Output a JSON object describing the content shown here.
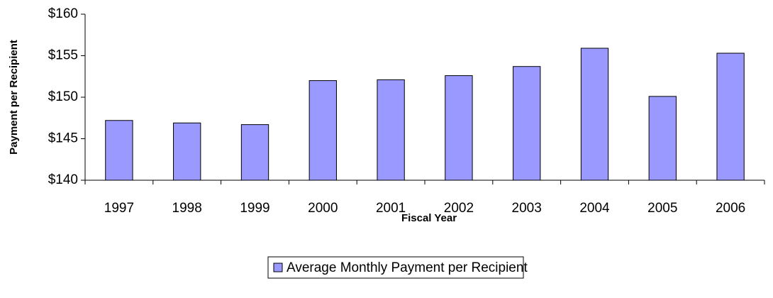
{
  "chart_data": {
    "type": "bar",
    "categories": [
      "1997",
      "1998",
      "1999",
      "2000",
      "2001",
      "2002",
      "2003",
      "2004",
      "2005",
      "2006"
    ],
    "series": [
      {
        "name": "Average Monthly Payment per Recipient",
        "color": "#9999ff",
        "values": [
          147.2,
          146.9,
          146.7,
          152.0,
          152.1,
          152.6,
          153.7,
          155.9,
          150.1,
          155.3
        ]
      }
    ],
    "xlabel": "Fiscal Year",
    "ylabel": "Payment per Recipient",
    "ylim": [
      140,
      160
    ],
    "yticks": [
      {
        "value": 140,
        "label": "$140"
      },
      {
        "value": 145,
        "label": "$145"
      },
      {
        "value": 150,
        "label": "$150"
      },
      {
        "value": 155,
        "label": "$155"
      },
      {
        "value": 160,
        "label": "$160"
      }
    ],
    "grid": false,
    "legend": "bottom"
  }
}
